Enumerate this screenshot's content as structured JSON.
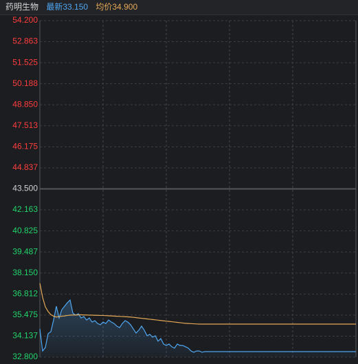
{
  "chart_data": {
    "type": "intraday",
    "title": "药明生物",
    "prev_close": 43.5,
    "colors": {
      "up": "#ff3d3d",
      "down": "#22d36a",
      "flat": "#d0d0d0"
    },
    "ylim": [
      32.8,
      54.2
    ],
    "yticks": [
      {
        "value": 54.2,
        "label": "54.200"
      },
      {
        "value": 52.863,
        "label": "52.863"
      },
      {
        "value": 51.525,
        "label": "51.525"
      },
      {
        "value": 50.188,
        "label": "50.188"
      },
      {
        "value": 48.85,
        "label": "48.850"
      },
      {
        "value": 47.513,
        "label": "47.513"
      },
      {
        "value": 46.175,
        "label": "46.175"
      },
      {
        "value": 44.837,
        "label": "44.837"
      },
      {
        "value": 43.5,
        "label": "43.500"
      },
      {
        "value": 42.163,
        "label": "42.163"
      },
      {
        "value": 40.825,
        "label": "40.825"
      },
      {
        "value": 39.487,
        "label": "39.487"
      },
      {
        "value": 38.15,
        "label": "38.150"
      },
      {
        "value": 36.812,
        "label": "36.812"
      },
      {
        "value": 35.475,
        "label": "35.475"
      },
      {
        "value": 34.137,
        "label": "34.137"
      },
      {
        "value": 32.8,
        "label": "32.800"
      }
    ],
    "grid": true,
    "series": [
      {
        "name": "最新33.150",
        "color": "#4ea6f0",
        "values": [
          34.59,
          33.19,
          33.41,
          34.29,
          34.42,
          35.16,
          36.04,
          35.29,
          35.82,
          36.04,
          36.26,
          36.43,
          35.6,
          35.47,
          35.56,
          35.29,
          35.38,
          35.16,
          35.29,
          35.03,
          35.12,
          34.94,
          34.86,
          35.03,
          34.94,
          35.16,
          35.03,
          34.94,
          34.77,
          34.68,
          34.94,
          35.12,
          35.03,
          34.86,
          34.59,
          34.33,
          34.51,
          34.77,
          34.51,
          34.16,
          34.25,
          34.07,
          34.16,
          33.81,
          33.98,
          33.63,
          33.54,
          33.63,
          33.46,
          33.37,
          33.63,
          33.54,
          33.54,
          33.46,
          33.37,
          33.19,
          33.11,
          33.19,
          33.19,
          33.11,
          33.15,
          33.15,
          33.15,
          33.15,
          33.15,
          33.15,
          33.15,
          33.15,
          33.15,
          33.15,
          33.15,
          33.15,
          33.15,
          33.15,
          33.15,
          33.15,
          33.15,
          33.15,
          33.15,
          33.15,
          33.15,
          33.15,
          33.15,
          33.15,
          33.15,
          33.15,
          33.15,
          33.15,
          33.15,
          33.15,
          33.15,
          33.15,
          33.15,
          33.15,
          33.15,
          33.15,
          33.15,
          33.15,
          33.15,
          33.15,
          33.15,
          33.15,
          33.15,
          33.15,
          33.15,
          33.15,
          33.15,
          33.15,
          33.15,
          33.15,
          33.15,
          33.15,
          33.15,
          33.15,
          33.15,
          33.15
        ]
      },
      {
        "name": "均价34.900",
        "color": "#e6a957",
        "values": [
          37.5,
          36.6,
          36.0,
          35.7,
          35.5,
          35.4,
          35.35,
          35.38,
          35.4,
          35.42,
          35.45,
          35.47,
          35.48,
          35.48,
          35.49,
          35.49,
          35.48,
          35.48,
          35.47,
          35.47,
          35.46,
          35.46,
          35.45,
          35.45,
          35.44,
          35.43,
          35.42,
          35.41,
          35.4,
          35.39,
          35.38,
          35.37,
          35.36,
          35.35,
          35.33,
          35.31,
          35.29,
          35.27,
          35.25,
          35.23,
          35.21,
          35.19,
          35.17,
          35.15,
          35.13,
          35.11,
          35.09,
          35.07,
          35.05,
          35.03,
          35.01,
          34.99,
          34.97,
          34.95,
          34.94,
          34.93,
          34.92,
          34.91,
          34.9,
          34.9,
          34.9,
          34.9,
          34.9,
          34.9,
          34.9,
          34.9,
          34.9,
          34.9,
          34.9,
          34.9,
          34.9,
          34.9,
          34.9,
          34.9,
          34.9,
          34.9,
          34.9,
          34.9,
          34.9,
          34.9,
          34.9,
          34.9,
          34.9,
          34.9,
          34.9,
          34.9,
          34.9,
          34.9,
          34.9,
          34.9,
          34.9,
          34.9,
          34.9,
          34.9,
          34.9,
          34.9,
          34.9,
          34.9,
          34.9,
          34.9,
          34.9,
          34.9,
          34.9,
          34.9,
          34.9,
          34.9,
          34.9,
          34.9,
          34.9,
          34.9,
          34.9,
          34.9,
          34.9,
          34.9,
          34.9,
          34.9
        ]
      }
    ]
  }
}
